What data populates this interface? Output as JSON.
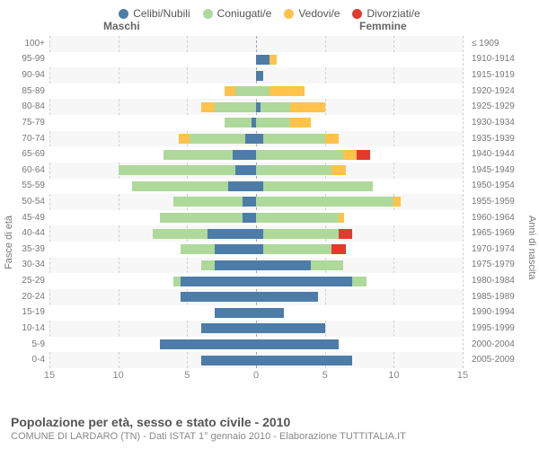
{
  "legend": [
    {
      "label": "Celibi/Nubili",
      "color": "#4d7ca8"
    },
    {
      "label": "Coniugati/e",
      "color": "#aed99a"
    },
    {
      "label": "Vedovi/e",
      "color": "#ffc24a"
    },
    {
      "label": "Divorziati/e",
      "color": "#e23a2e"
    }
  ],
  "headers": {
    "male": "Maschi",
    "female": "Femmine"
  },
  "axis": {
    "left_title": "Fasce di età",
    "right_title": "Anni di nascita",
    "xmax": 15,
    "xticks": [
      15,
      10,
      5,
      0,
      5,
      10,
      15
    ]
  },
  "footer": {
    "title": "Popolazione per età, sesso e stato civile - 2010",
    "subtitle": "COMUNE DI LARDARO (TN) - Dati ISTAT 1° gennaio 2010 - Elaborazione TUTTITALIA.IT"
  },
  "colors": {
    "celibi": "#4d7ca8",
    "coniugati": "#aed99a",
    "vedovi": "#ffc24a",
    "divorziati": "#e23a2e",
    "plot_bg": "#f7f7f7",
    "grid": "#d0d0d0"
  },
  "rows": [
    {
      "age": "100+",
      "birth": "≤ 1909",
      "m": {
        "cel": 0,
        "con": 0,
        "ved": 0,
        "div": 0
      },
      "f": {
        "cel": 0,
        "con": 0,
        "ved": 0,
        "div": 0
      }
    },
    {
      "age": "95-99",
      "birth": "1910-1914",
      "m": {
        "cel": 0,
        "con": 0,
        "ved": 0,
        "div": 0
      },
      "f": {
        "cel": 1,
        "con": 0,
        "ved": 0.5,
        "div": 0
      }
    },
    {
      "age": "90-94",
      "birth": "1915-1919",
      "m": {
        "cel": 0,
        "con": 0,
        "ved": 0,
        "div": 0
      },
      "f": {
        "cel": 0.5,
        "con": 0,
        "ved": 0,
        "div": 0
      }
    },
    {
      "age": "85-89",
      "birth": "1920-1924",
      "m": {
        "cel": 0,
        "con": 1.5,
        "ved": 0.8,
        "div": 0
      },
      "f": {
        "cel": 0,
        "con": 1,
        "ved": 2.5,
        "div": 0
      }
    },
    {
      "age": "80-84",
      "birth": "1925-1929",
      "m": {
        "cel": 0,
        "con": 3,
        "ved": 1,
        "div": 0
      },
      "f": {
        "cel": 0.3,
        "con": 2.2,
        "ved": 2.5,
        "div": 0
      }
    },
    {
      "age": "75-79",
      "birth": "1930-1934",
      "m": {
        "cel": 0.3,
        "con": 2,
        "ved": 0,
        "div": 0
      },
      "f": {
        "cel": 0,
        "con": 2.5,
        "ved": 1.5,
        "div": 0
      }
    },
    {
      "age": "70-74",
      "birth": "1935-1939",
      "m": {
        "cel": 0.8,
        "con": 4,
        "ved": 0.8,
        "div": 0
      },
      "f": {
        "cel": 0.5,
        "con": 4.5,
        "ved": 1,
        "div": 0
      }
    },
    {
      "age": "65-69",
      "birth": "1940-1944",
      "m": {
        "cel": 1.7,
        "con": 5,
        "ved": 0,
        "div": 0
      },
      "f": {
        "cel": 0,
        "con": 6.3,
        "ved": 1,
        "div": 1
      }
    },
    {
      "age": "60-64",
      "birth": "1945-1949",
      "m": {
        "cel": 1.5,
        "con": 8.5,
        "ved": 0,
        "div": 0
      },
      "f": {
        "cel": 0,
        "con": 5.5,
        "ved": 1,
        "div": 0
      }
    },
    {
      "age": "55-59",
      "birth": "1950-1954",
      "m": {
        "cel": 2,
        "con": 7,
        "ved": 0,
        "div": 0
      },
      "f": {
        "cel": 0.5,
        "con": 8,
        "ved": 0,
        "div": 0
      }
    },
    {
      "age": "50-54",
      "birth": "1955-1959",
      "m": {
        "cel": 1,
        "con": 5,
        "ved": 0,
        "div": 0
      },
      "f": {
        "cel": 0,
        "con": 10,
        "ved": 0.5,
        "div": 0
      }
    },
    {
      "age": "45-49",
      "birth": "1960-1964",
      "m": {
        "cel": 1,
        "con": 6,
        "ved": 0,
        "div": 0
      },
      "f": {
        "cel": 0,
        "con": 6,
        "ved": 0.4,
        "div": 0
      }
    },
    {
      "age": "40-44",
      "birth": "1965-1969",
      "m": {
        "cel": 3.5,
        "con": 4,
        "ved": 0,
        "div": 0
      },
      "f": {
        "cel": 0.5,
        "con": 5.5,
        "ved": 0,
        "div": 1
      }
    },
    {
      "age": "35-39",
      "birth": "1970-1974",
      "m": {
        "cel": 3,
        "con": 2.5,
        "ved": 0,
        "div": 0
      },
      "f": {
        "cel": 0.5,
        "con": 5,
        "ved": 0,
        "div": 1
      }
    },
    {
      "age": "30-34",
      "birth": "1975-1979",
      "m": {
        "cel": 3,
        "con": 1,
        "ved": 0,
        "div": 0
      },
      "f": {
        "cel": 4,
        "con": 2.3,
        "ved": 0,
        "div": 0
      }
    },
    {
      "age": "25-29",
      "birth": "1980-1984",
      "m": {
        "cel": 5.5,
        "con": 0.5,
        "ved": 0,
        "div": 0
      },
      "f": {
        "cel": 7,
        "con": 1,
        "ved": 0,
        "div": 0
      }
    },
    {
      "age": "20-24",
      "birth": "1985-1989",
      "m": {
        "cel": 5.5,
        "con": 0,
        "ved": 0,
        "div": 0
      },
      "f": {
        "cel": 4.5,
        "con": 0,
        "ved": 0,
        "div": 0
      }
    },
    {
      "age": "15-19",
      "birth": "1990-1994",
      "m": {
        "cel": 3,
        "con": 0,
        "ved": 0,
        "div": 0
      },
      "f": {
        "cel": 2,
        "con": 0,
        "ved": 0,
        "div": 0
      }
    },
    {
      "age": "10-14",
      "birth": "1995-1999",
      "m": {
        "cel": 4,
        "con": 0,
        "ved": 0,
        "div": 0
      },
      "f": {
        "cel": 5,
        "con": 0,
        "ved": 0,
        "div": 0
      }
    },
    {
      "age": "5-9",
      "birth": "2000-2004",
      "m": {
        "cel": 7,
        "con": 0,
        "ved": 0,
        "div": 0
      },
      "f": {
        "cel": 6,
        "con": 0,
        "ved": 0,
        "div": 0
      }
    },
    {
      "age": "0-4",
      "birth": "2005-2009",
      "m": {
        "cel": 4,
        "con": 0,
        "ved": 0,
        "div": 0
      },
      "f": {
        "cel": 7,
        "con": 0,
        "ved": 0,
        "div": 0
      }
    }
  ]
}
